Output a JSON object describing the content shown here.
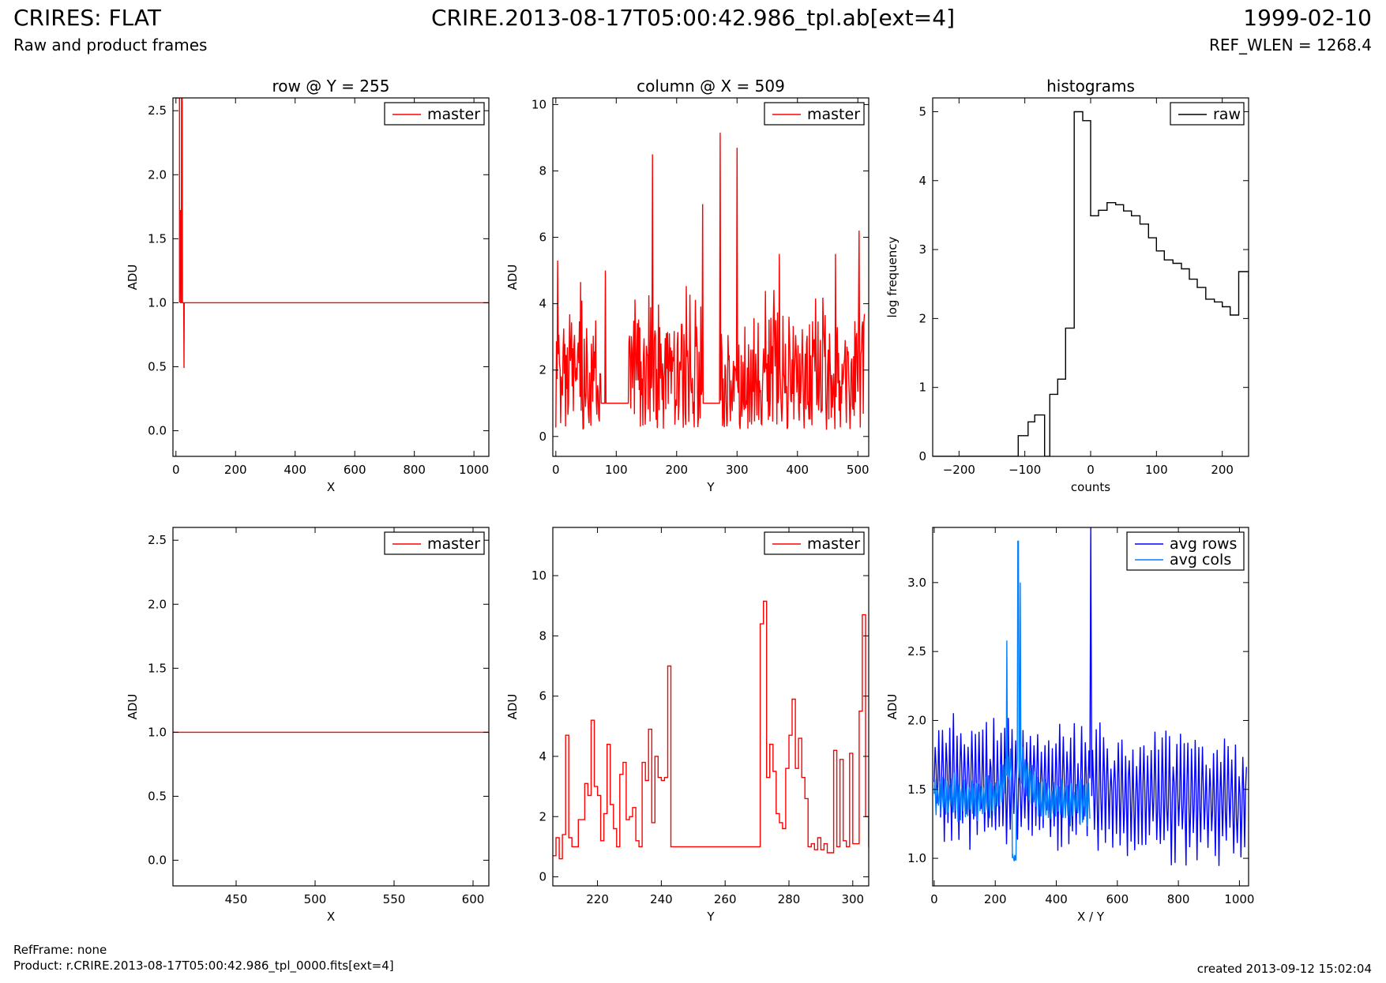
{
  "header": {
    "title": "CRIRES: FLAT",
    "subtitle": "Raw and product frames",
    "file": "CRIRE.2013-08-17T05:00:42.986_tpl.ab[ext=4]",
    "date": "1999-02-10",
    "ref_wlen": "REF_WLEN = 1268.4"
  },
  "footer": {
    "ref_frame": "RefFrame: none",
    "product": "Product: r.CRIRE.2013-08-17T05:00:42.986_tpl_0000.fits[ext=4]",
    "created": "created 2013-09-12 15:02:04"
  },
  "colors": {
    "master": "#ff0000",
    "raw": "#000000",
    "avg_rows": "#0000ff",
    "avg_cols": "#0080ff"
  },
  "chart_data": [
    {
      "type": "line",
      "title": "row @ Y = 255",
      "xlabel": "X",
      "ylabel": "ADU",
      "xlim": [
        -10,
        1050
      ],
      "ylim": [
        -0.2,
        2.6
      ],
      "xticks": [
        0,
        200,
        400,
        600,
        800,
        1000
      ],
      "yticks": [
        0.0,
        0.5,
        1.0,
        1.5,
        2.0,
        2.5
      ],
      "ytick_labels": [
        "0.0",
        "0.5",
        "1.0",
        "1.5",
        "2.0",
        "2.5"
      ],
      "legend": "upper right",
      "series": [
        {
          "name": "master",
          "color": "#ff0000",
          "step": false,
          "points": [
            [
              0,
              2.6
            ],
            [
              12,
              2.6
            ],
            [
              12,
              1.0
            ],
            [
              13,
              1.72
            ],
            [
              15,
              1.72
            ],
            [
              16,
              1.0
            ],
            [
              18,
              1.0
            ],
            [
              19,
              2.6
            ],
            [
              21,
              2.6
            ],
            [
              22,
              1.0
            ],
            [
              26,
              1.0
            ],
            [
              27,
              0.49
            ],
            [
              28,
              1.0
            ],
            [
              1050,
              1.0
            ]
          ]
        }
      ]
    },
    {
      "type": "line",
      "title": "column @ X = 509",
      "xlabel": "Y",
      "ylabel": "ADU",
      "xlim": [
        -5,
        518
      ],
      "ylim": [
        -0.6,
        10.2
      ],
      "xticks": [
        0,
        100,
        200,
        300,
        400,
        500
      ],
      "yticks": [
        0,
        2,
        4,
        6,
        8,
        10
      ],
      "ytick_labels": [
        "0",
        "2",
        "4",
        "6",
        "8",
        "10"
      ],
      "legend": "upper right",
      "series": [
        {
          "name": "master",
          "color": "#ff0000",
          "step": false,
          "generated": {
            "start": 0,
            "end": 511,
            "base": 1.0,
            "noise_amp": 3.2,
            "seed": 7,
            "flat_ranges": [
              [
                75,
                120
              ],
              [
                243,
                271
              ]
            ],
            "spikes": [
              [
                3,
                5.3
              ],
              [
                82,
                5.0
              ],
              [
                160,
                8.5
              ],
              [
                243,
                7.0
              ],
              [
                272,
                9.15
              ],
              [
                300,
                8.7
              ],
              [
                370,
                5.5
              ],
              [
                463,
                5.5
              ],
              [
                502,
                6.2
              ]
            ]
          }
        }
      ]
    },
    {
      "type": "line",
      "title": "histograms",
      "xlabel": "counts",
      "ylabel": "log frequency",
      "xlim": [
        -240,
        240
      ],
      "ylim": [
        0,
        5.2
      ],
      "xticks": [
        -200,
        -100,
        0,
        100,
        200
      ],
      "xtick_labels": [
        "−200",
        "−100",
        "0",
        "100",
        "200"
      ],
      "yticks": [
        0,
        1,
        2,
        3,
        4,
        5
      ],
      "ytick_labels": [
        "0",
        "1",
        "2",
        "3",
        "4",
        "5"
      ],
      "legend": "upper right",
      "series": [
        {
          "name": "raw",
          "color": "#000000",
          "step": true,
          "points": [
            [
              -240,
              0
            ],
            [
              -110,
              0
            ],
            [
              -110,
              0.3
            ],
            [
              -95,
              0.3
            ],
            [
              -95,
              0.5
            ],
            [
              -85,
              0.5
            ],
            [
              -85,
              0.6
            ],
            [
              -70,
              0.6
            ],
            [
              -70,
              0
            ],
            [
              -62,
              0
            ],
            [
              -62,
              0.9
            ],
            [
              -50,
              0.9
            ],
            [
              -50,
              1.12
            ],
            [
              -38,
              1.12
            ],
            [
              -38,
              1.86
            ],
            [
              -25,
              1.86
            ],
            [
              -25,
              5.0
            ],
            [
              -12,
              5.0
            ],
            [
              -12,
              4.87
            ],
            [
              0,
              4.87
            ],
            [
              0,
              3.49
            ],
            [
              12,
              3.49
            ],
            [
              12,
              3.57
            ],
            [
              25,
              3.57
            ],
            [
              25,
              3.68
            ],
            [
              38,
              3.68
            ],
            [
              38,
              3.65
            ],
            [
              50,
              3.65
            ],
            [
              50,
              3.56
            ],
            [
              62,
              3.56
            ],
            [
              62,
              3.49
            ],
            [
              75,
              3.49
            ],
            [
              75,
              3.37
            ],
            [
              88,
              3.37
            ],
            [
              88,
              3.17
            ],
            [
              100,
              3.17
            ],
            [
              100,
              2.98
            ],
            [
              112,
              2.98
            ],
            [
              112,
              2.85
            ],
            [
              125,
              2.85
            ],
            [
              125,
              2.8
            ],
            [
              138,
              2.8
            ],
            [
              138,
              2.72
            ],
            [
              150,
              2.72
            ],
            [
              150,
              2.57
            ],
            [
              162,
              2.57
            ],
            [
              162,
              2.45
            ],
            [
              175,
              2.45
            ],
            [
              175,
              2.28
            ],
            [
              188,
              2.28
            ],
            [
              188,
              2.24
            ],
            [
              200,
              2.24
            ],
            [
              200,
              2.17
            ],
            [
              212,
              2.17
            ],
            [
              212,
              2.05
            ],
            [
              225,
              2.05
            ],
            [
              225,
              2.68
            ],
            [
              240,
              2.68
            ],
            [
              240,
              2.0
            ]
          ]
        }
      ]
    },
    {
      "type": "line",
      "title": "",
      "xlabel": "X",
      "ylabel": "ADU",
      "xlim": [
        410,
        610
      ],
      "ylim": [
        -0.2,
        2.6
      ],
      "xticks": [
        450,
        500,
        550,
        600
      ],
      "yticks": [
        0.0,
        0.5,
        1.0,
        1.5,
        2.0,
        2.5
      ],
      "ytick_labels": [
        "0.0",
        "0.5",
        "1.0",
        "1.5",
        "2.0",
        "2.5"
      ],
      "legend": "upper right",
      "series": [
        {
          "name": "master",
          "color": "#ff0000",
          "step": false,
          "points": [
            [
              410,
              1.0
            ],
            [
              610,
              1.0
            ]
          ]
        }
      ]
    },
    {
      "type": "line",
      "title": "",
      "xlabel": "Y",
      "ylabel": "ADU",
      "xlim": [
        206,
        305
      ],
      "ylim": [
        -0.3,
        11.6
      ],
      "xticks": [
        220,
        240,
        260,
        280,
        300
      ],
      "yticks": [
        0,
        2,
        4,
        6,
        8,
        10
      ],
      "ytick_labels": [
        "0",
        "2",
        "4",
        "6",
        "8",
        "10"
      ],
      "legend": "upper right",
      "series": [
        {
          "name": "master",
          "color": "#ff0000",
          "step": true,
          "values_start": 206,
          "values": [
            0.7,
            1.3,
            0.6,
            1.4,
            4.7,
            1.3,
            1.0,
            1.0,
            1.9,
            1.9,
            3.1,
            2.7,
            5.2,
            3.0,
            2.7,
            1.2,
            2.1,
            4.4,
            2.4,
            1.6,
            1.0,
            3.4,
            3.8,
            1.9,
            2.0,
            2.3,
            1.2,
            1.0,
            3.8,
            3.2,
            4.9,
            1.8,
            4.0,
            3.3,
            3.2,
            3.3,
            7.0,
            1.0,
            1.0,
            1.0,
            1.0,
            1.0,
            1.0,
            1.0,
            1.0,
            1.0,
            1.0,
            1.0,
            1.0,
            1.0,
            1.0,
            1.0,
            1.0,
            1.0,
            1.0,
            1.0,
            1.0,
            1.0,
            1.0,
            1.0,
            1.0,
            1.0,
            1.0,
            1.0,
            1.0,
            8.4,
            9.15,
            3.3,
            4.4,
            3.5,
            2.1,
            1.8,
            1.6,
            3.6,
            4.7,
            5.9,
            3.6,
            4.6,
            3.3,
            2.6,
            1.0,
            1.1,
            0.9,
            1.3,
            0.9,
            1.1,
            0.8,
            0.8,
            4.2,
            1.0,
            3.9,
            1.2,
            1.0,
            4.1,
            1.1,
            1.1,
            5.5,
            8.7,
            2.0,
            1.0,
            1.7
          ]
        }
      ]
    },
    {
      "type": "line",
      "title": "",
      "xlabel": "X / Y",
      "ylabel": "ADU",
      "xlim": [
        -5,
        1030
      ],
      "ylim": [
        0.8,
        3.4
      ],
      "xticks": [
        0,
        200,
        400,
        600,
        800,
        1000
      ],
      "yticks": [
        1.0,
        1.5,
        2.0,
        2.5,
        3.0
      ],
      "ytick_labels": [
        "1.0",
        "1.5",
        "2.0",
        "2.5",
        "3.0"
      ],
      "legend": "upper right",
      "series": [
        {
          "name": "avg rows",
          "color": "#0000ff",
          "step": false,
          "generated": {
            "start": 0,
            "end": 1023,
            "stride": 3,
            "center": 1.6,
            "center_end": 1.4,
            "amp": 0.42,
            "period": 12,
            "seed": 11,
            "spikes": [
              [
                512,
                3.4
              ]
            ]
          }
        },
        {
          "name": "avg cols",
          "color": "#0080ff",
          "step": false,
          "generated": {
            "start": 0,
            "end": 511,
            "stride": 2,
            "center": 1.45,
            "center_end": 1.4,
            "amp": 0.15,
            "period": 8,
            "seed": 5,
            "bump": [
              270,
              45,
              0.3
            ],
            "spikes": [
              [
                238,
                2.58
              ],
              [
                275,
                3.3
              ],
              [
                282,
                3.0
              ]
            ],
            "dips": [
              [
                255,
                268,
                1.0
              ]
            ]
          }
        }
      ]
    }
  ]
}
